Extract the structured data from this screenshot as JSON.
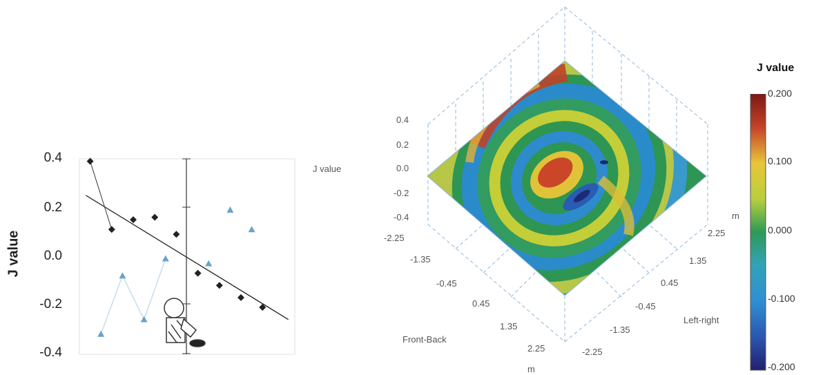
{
  "chart_data": [
    {
      "type": "scatter",
      "ylabel": "J value",
      "ylim": [
        -0.4,
        0.4
      ],
      "yticks": [
        "0.4",
        "0.2",
        "0.0",
        "-0.2",
        "-0.4"
      ],
      "series": [
        {
          "marker": "diamond",
          "color": "#222222",
          "x": [
            1,
            2,
            3,
            4,
            5,
            6,
            7,
            8,
            9
          ],
          "values": [
            0.39,
            0.11,
            0.15,
            0.16,
            0.09,
            -0.07,
            -0.12,
            -0.17,
            -0.21
          ]
        },
        {
          "marker": "triangle",
          "color": "#6aa3c8",
          "x": [
            1.5,
            2.5,
            3.5,
            4.5,
            6.5,
            7.5,
            8.5
          ],
          "values": [
            -0.32,
            -0.08,
            -0.26,
            -0.01,
            -0.03,
            0.19,
            0.11
          ]
        }
      ],
      "trendline": {
        "from": [
          0.8,
          0.25
        ],
        "to": [
          10.2,
          -0.26
        ],
        "color": "#222222"
      }
    },
    {
      "type": "heatmap",
      "colorbar_title": "J value",
      "colorbar_ticks": [
        "0.200",
        "0.100",
        "0.000",
        "-0.100",
        "-0.200"
      ],
      "zlabel": "J value",
      "xlabel": "Front-Back",
      "ylabel": "Left-right",
      "unit": "m",
      "z_ticks": [
        "0.4",
        "0.2",
        "0.0",
        "-0.2",
        "-0.4"
      ],
      "front_back_ticks": [
        "-2.25",
        "-1.35",
        "-0.45",
        "0.45",
        "1.35",
        "2.25"
      ],
      "left_right_ticks": [
        "2.25",
        "1.35",
        "0.45",
        "-0.45",
        "-1.35",
        "-2.25"
      ],
      "range": [
        -0.2,
        0.2
      ]
    }
  ]
}
